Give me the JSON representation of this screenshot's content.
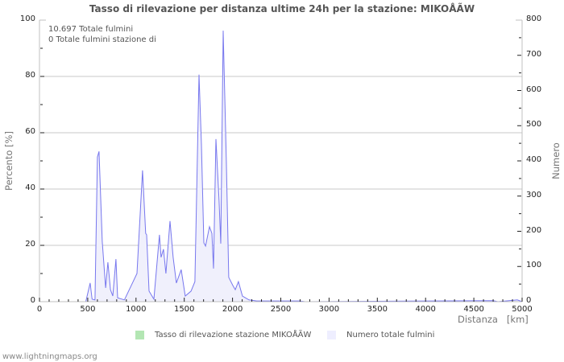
{
  "title": "Tasso di rilevazione per distanza ultime 24h per la stazione: MIKOÅ\u001eÃ\u001eW",
  "info_lines": [
    "10.697 Totale fulmini",
    "0 Totale fulmini stazione di"
  ],
  "axes": {
    "left_label": "Percento   [%]",
    "right_label": "Numero",
    "x_label": "Distanza   [km]",
    "left_ticks": [
      "0",
      "20",
      "40",
      "60",
      "80",
      "100"
    ],
    "right_ticks": [
      "0",
      "100",
      "200",
      "300",
      "400",
      "500",
      "600",
      "700",
      "800"
    ],
    "x_ticks": [
      "0",
      "500",
      "1000",
      "1500",
      "2000",
      "2500",
      "3000",
      "3500",
      "4000",
      "4500",
      "5000"
    ]
  },
  "legend": [
    {
      "label": "Tasso di rilevazione stazione MIKOÅ\u001eÃ\u001eW",
      "color": "#b3e6b3"
    },
    {
      "label": "Numero totale fulmini",
      "color": "#eeeeff"
    }
  ],
  "footer": "www.lightningmaps.org",
  "colors": {
    "line": "#7777ee",
    "fill": "#f0f0fc",
    "grid": "#c8c8c8",
    "axis": "#c0c0c0"
  },
  "chart_data": {
    "type": "area",
    "title": "Tasso di rilevazione per distanza ultime 24h per la stazione: MIKOÅ\u001eÃ\u001eW",
    "xlabel": "Distanza [km]",
    "ylabel_left": "Percento [%]",
    "ylabel_right": "Numero",
    "xlim": [
      0,
      5000
    ],
    "ylim_left": [
      0,
      100
    ],
    "ylim_right": [
      0,
      800
    ],
    "grid": true,
    "legend_position": "bottom",
    "series": [
      {
        "name": "Numero totale fulmini",
        "axis": "right",
        "x": [
          0,
          480,
          525,
          545,
          575,
          600,
          617,
          650,
          685,
          709,
          735,
          760,
          792,
          810,
          880,
          1010,
          1068,
          1100,
          1110,
          1135,
          1185,
          1243,
          1260,
          1285,
          1310,
          1352,
          1385,
          1418,
          1468,
          1510,
          1570,
          1610,
          1653,
          1678,
          1703,
          1720,
          1761,
          1786,
          1803,
          1828,
          1861,
          1878,
          1903,
          1936,
          1961,
          2003,
          2028,
          2061,
          2103,
          2170,
          2250,
          2700,
          2750,
          4700,
          4750,
          4950,
          5000
        ],
        "values": [
          0,
          0,
          53,
          7,
          5,
          411,
          427,
          171,
          39,
          112,
          34,
          16,
          121,
          11,
          5,
          80,
          373,
          194,
          190,
          30,
          7,
          190,
          126,
          149,
          80,
          229,
          126,
          53,
          91,
          16,
          30,
          57,
          645,
          446,
          167,
          158,
          213,
          194,
          94,
          462,
          286,
          165,
          770,
          400,
          69,
          46,
          34,
          57,
          16,
          5,
          2,
          2,
          0,
          3,
          0,
          5,
          0
        ]
      },
      {
        "name": "Tasso di rilevazione stazione MIKOÅ\u001eÃ\u001eW",
        "axis": "left",
        "x": [
          0,
          5000
        ],
        "values": [
          0,
          0
        ]
      }
    ],
    "annotations": [
      "10.697 Totale fulmini",
      "0 Totale fulmini stazione di"
    ]
  }
}
